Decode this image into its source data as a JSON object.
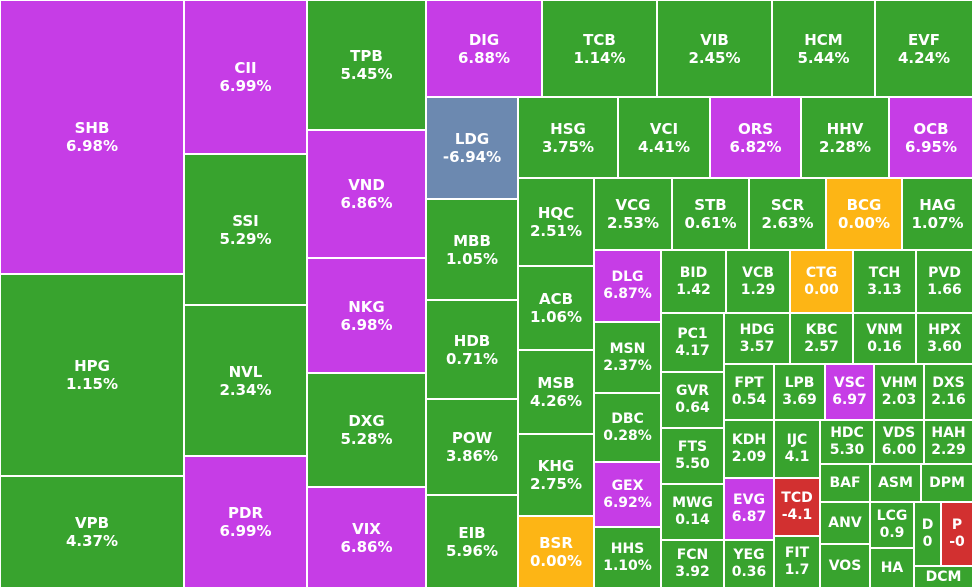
{
  "tiles": [
    {
      "label": "SHB",
      "value": "6.98%",
      "color": "#c63de6"
    },
    {
      "label": "HPG",
      "value": "1.15%",
      "color": "#38a32e"
    },
    {
      "label": "VPB",
      "value": "4.37%",
      "color": "#38a32e"
    },
    {
      "label": "CII",
      "value": "6.99%",
      "color": "#c63de6"
    },
    {
      "label": "SSI",
      "value": "5.29%",
      "color": "#38a32e"
    },
    {
      "label": "NVL",
      "value": "2.34%",
      "color": "#38a32e"
    },
    {
      "label": "PDR",
      "value": "6.99%",
      "color": "#c63de6"
    },
    {
      "label": "TPB",
      "value": "5.45%",
      "color": "#38a32e"
    },
    {
      "label": "VND",
      "value": "6.86%",
      "color": "#c63de6"
    },
    {
      "label": "NKG",
      "value": "6.98%",
      "color": "#c63de6"
    },
    {
      "label": "DXG",
      "value": "5.28%",
      "color": "#38a32e"
    },
    {
      "label": "VIX",
      "value": "6.86%",
      "color": "#c63de6"
    },
    {
      "label": "DIG",
      "value": "6.88%",
      "color": "#c63de6"
    },
    {
      "label": "TCB",
      "value": "1.14%",
      "color": "#38a32e"
    },
    {
      "label": "VIB",
      "value": "2.45%",
      "color": "#38a32e"
    },
    {
      "label": "HCM",
      "value": "5.44%",
      "color": "#38a32e"
    },
    {
      "label": "EVF",
      "value": "4.24%",
      "color": "#38a32e"
    },
    {
      "label": "LDG",
      "value": "-6.94%",
      "color": "#6c89b0"
    },
    {
      "label": "MBB",
      "value": "1.05%",
      "color": "#38a32e"
    },
    {
      "label": "HDB",
      "value": "0.71%",
      "color": "#38a32e"
    },
    {
      "label": "POW",
      "value": "3.86%",
      "color": "#38a32e"
    },
    {
      "label": "EIB",
      "value": "5.96%",
      "color": "#38a32e"
    },
    {
      "label": "HSG",
      "value": "3.75%",
      "color": "#38a32e"
    },
    {
      "label": "VCI",
      "value": "4.41%",
      "color": "#38a32e"
    },
    {
      "label": "ORS",
      "value": "6.82%",
      "color": "#c63de6"
    },
    {
      "label": "HHV",
      "value": "2.28%",
      "color": "#38a32e"
    },
    {
      "label": "OCB",
      "value": "6.95%",
      "color": "#c63de6"
    },
    {
      "label": "HQC",
      "value": "2.51%",
      "color": "#38a32e"
    },
    {
      "label": "ACB",
      "value": "1.06%",
      "color": "#38a32e"
    },
    {
      "label": "MSB",
      "value": "4.26%",
      "color": "#38a32e"
    },
    {
      "label": "KHG",
      "value": "2.75%",
      "color": "#38a32e"
    },
    {
      "label": "BSR",
      "value": "0.00%",
      "color": "#fdb515"
    },
    {
      "label": "VCG",
      "value": "2.53%",
      "color": "#38a32e"
    },
    {
      "label": "STB",
      "value": "0.61%",
      "color": "#38a32e"
    },
    {
      "label": "SCR",
      "value": "2.63%",
      "color": "#38a32e"
    },
    {
      "label": "BCG",
      "value": "0.00%",
      "color": "#fdb515"
    },
    {
      "label": "HAG",
      "value": "1.07%",
      "color": "#38a32e"
    },
    {
      "label": "DLG",
      "value": "6.87%",
      "color": "#c63de6"
    },
    {
      "label": "MSN",
      "value": "2.37%",
      "color": "#38a32e"
    },
    {
      "label": "DBC",
      "value": "0.28%",
      "color": "#38a32e"
    },
    {
      "label": "GEX",
      "value": "6.92%",
      "color": "#c63de6"
    },
    {
      "label": "HHS",
      "value": "1.10%",
      "color": "#38a32e"
    },
    {
      "label": "BID",
      "value": "1.42",
      "color": "#38a32e"
    },
    {
      "label": "VCB",
      "value": "1.29",
      "color": "#38a32e"
    },
    {
      "label": "CTG",
      "value": "0.00",
      "color": "#fdb515"
    },
    {
      "label": "TCH",
      "value": "3.13",
      "color": "#38a32e"
    },
    {
      "label": "PVD",
      "value": "1.66",
      "color": "#38a32e"
    },
    {
      "label": "PC1",
      "value": "4.17",
      "color": "#38a32e"
    },
    {
      "label": "GVR",
      "value": "0.64",
      "color": "#38a32e"
    },
    {
      "label": "FTS",
      "value": "5.50",
      "color": "#38a32e"
    },
    {
      "label": "MWG",
      "value": "0.14",
      "color": "#38a32e"
    },
    {
      "label": "FCN",
      "value": "3.92",
      "color": "#38a32e"
    },
    {
      "label": "HDG",
      "value": "3.57",
      "color": "#38a32e"
    },
    {
      "label": "KBC",
      "value": "2.57",
      "color": "#38a32e"
    },
    {
      "label": "VNM",
      "value": "0.16",
      "color": "#38a32e"
    },
    {
      "label": "HPX",
      "value": "3.60",
      "color": "#38a32e"
    },
    {
      "label": "FPT",
      "value": "0.54",
      "color": "#38a32e"
    },
    {
      "label": "KDH",
      "value": "2.09",
      "color": "#38a32e"
    },
    {
      "label": "EVG",
      "value": "6.87",
      "color": "#c63de6"
    },
    {
      "label": "YEG",
      "value": "0.36",
      "color": "#38a32e"
    },
    {
      "label": "LPB",
      "value": "3.69",
      "color": "#38a32e"
    },
    {
      "label": "VSC",
      "value": "6.97",
      "color": "#c63de6"
    },
    {
      "label": "VHM",
      "value": "2.03",
      "color": "#38a32e"
    },
    {
      "label": "DXS",
      "value": "2.16",
      "color": "#38a32e"
    },
    {
      "label": "IJC",
      "value": "4.1",
      "color": "#38a32e"
    },
    {
      "label": "TCD",
      "value": "-4.1",
      "color": "#d23030"
    },
    {
      "label": "FIT",
      "value": "1.7",
      "color": "#38a32e"
    },
    {
      "label": "HDC",
      "value": "5.30",
      "color": "#38a32e"
    },
    {
      "label": "VDS",
      "value": "6.00",
      "color": "#38a32e"
    },
    {
      "label": "HAH",
      "value": "2.29",
      "color": "#38a32e"
    },
    {
      "label": "BAF",
      "color": "#38a32e"
    },
    {
      "label": "ASM",
      "color": "#38a32e"
    },
    {
      "label": "DPM",
      "color": "#38a32e"
    },
    {
      "label": "ANV",
      "color": "#38a32e"
    },
    {
      "label": "VOS",
      "color": "#38a32e"
    },
    {
      "label": "LCG",
      "value": "0.9",
      "color": "#38a32e"
    },
    {
      "label": "HA",
      "color": "#38a32e"
    },
    {
      "label": "D",
      "value": "0",
      "color": "#38a32e"
    },
    {
      "label": "P",
      "value": "-0",
      "color": "#d23030"
    },
    {
      "label": "DCM",
      "color": "#38a32e"
    }
  ]
}
